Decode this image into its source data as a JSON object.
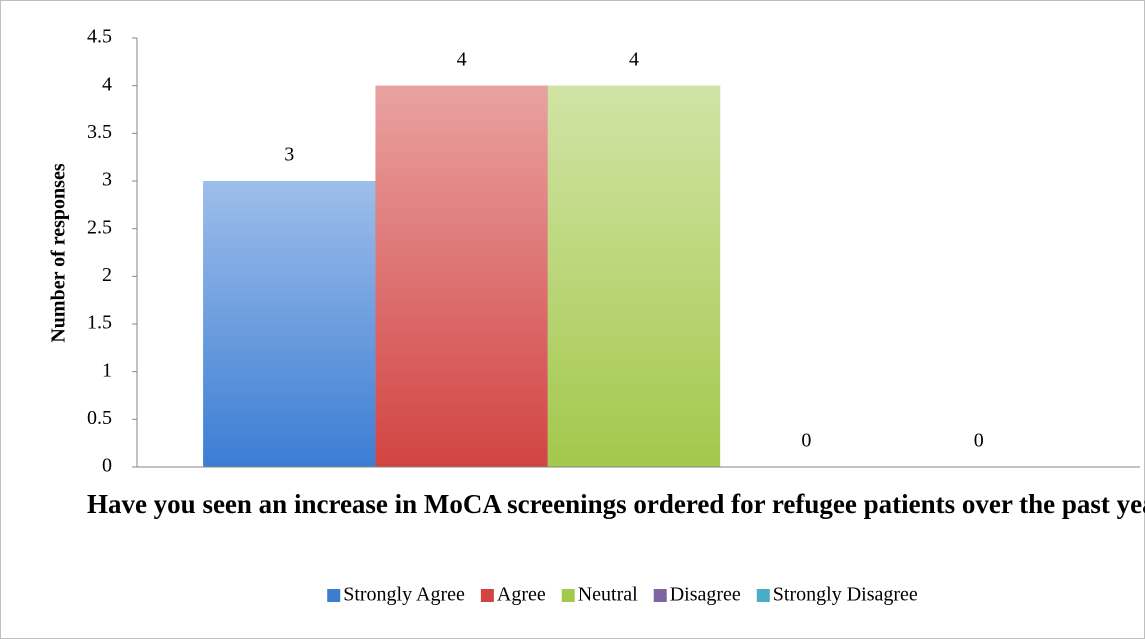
{
  "chart_data": {
    "type": "bar",
    "x_label": "Have you seen an increase in MoCA screenings ordered for refugee patients over the past year?",
    "y_label": "Number of responses",
    "categories": [
      null
    ],
    "series": [
      {
        "name": "Strongly Agree",
        "color": "#3c7dd4",
        "values": [
          3
        ]
      },
      {
        "name": "Agree",
        "color": "#d24443",
        "values": [
          4
        ]
      },
      {
        "name": "Neutral",
        "color": "#a3c84c",
        "values": [
          4
        ]
      },
      {
        "name": "Disagree",
        "color": "#8064a2",
        "values": [
          0
        ]
      },
      {
        "name": "Strongly Disagree",
        "color": "#4bacc6",
        "values": [
          0
        ]
      }
    ],
    "ylim": [
      0,
      4.5
    ],
    "yticks": [
      0,
      0.5,
      1,
      1.5,
      2,
      2.5,
      3,
      3.5,
      4,
      4.5
    ],
    "grid": false,
    "legend": "bottom"
  }
}
